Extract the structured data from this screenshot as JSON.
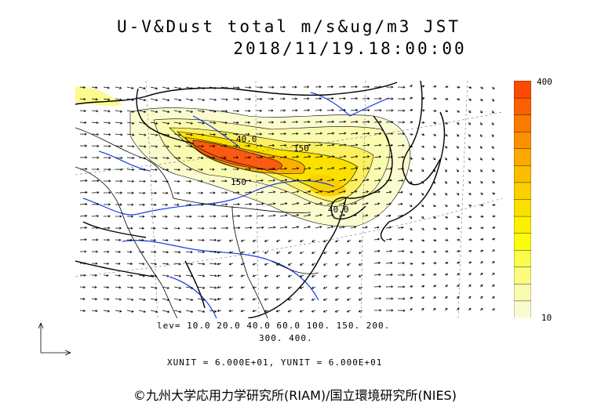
{
  "title": {
    "line1": "U-V&Dust total m/s&ug/m3 JST",
    "line2": "2018/11/19.18:00:00"
  },
  "colorbar": {
    "max_label": "400",
    "min_label": "10",
    "colors": [
      "#fbfbd0",
      "#fbfbb0",
      "#fbfb80",
      "#fbfb50",
      "#fbfb10",
      "#fbf000",
      "#fbe000",
      "#fbd000",
      "#fbbd00",
      "#fba800",
      "#fb9000",
      "#fb7a00",
      "#fb6000",
      "#fb4a00"
    ]
  },
  "levels": {
    "line1": "lev= 10.0 20.0 40.0 60.0 100. 150. 200.",
    "line2": "300. 400."
  },
  "contour_labels": [
    "40.0",
    "150",
    "150",
    "40.0"
  ],
  "units": "XUNIT = 6.000E+01, YUNIT = 6.000E+01",
  "copyright": "©九州大学応用力学研究所(RIAM)/国立環境研究所(NIES)",
  "colors": {
    "coast": "#000000",
    "rivers": "#1a3fe6",
    "dust_low": "#fbfbb0",
    "dust_mid": "#fbe000",
    "dust_high": "#fb5a10"
  }
}
